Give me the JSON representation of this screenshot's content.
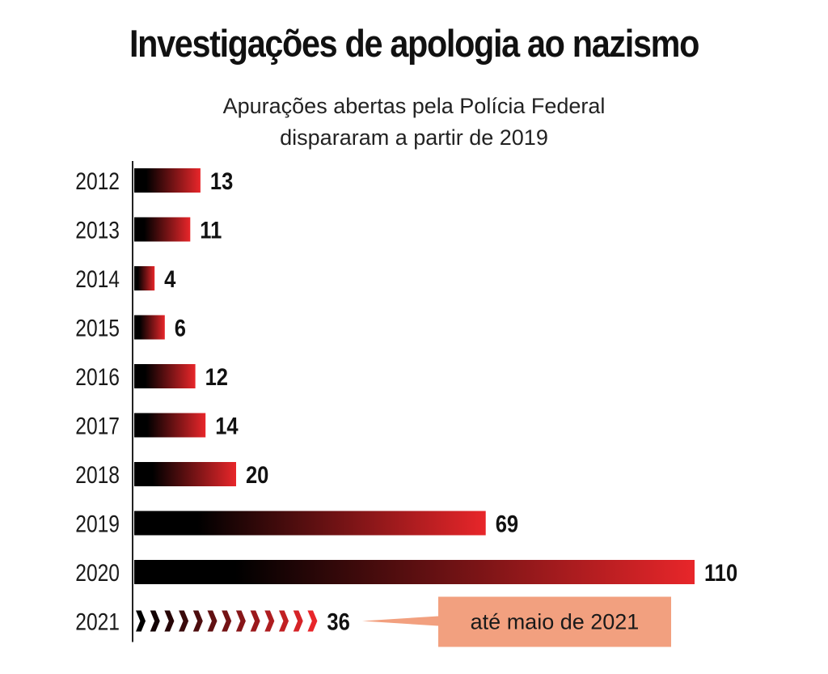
{
  "chart_data": {
    "type": "bar",
    "orientation": "horizontal",
    "title": "Investigações de apologia ao nazismo",
    "subtitle_line1": "Apurações abertas pela Polícia Federal",
    "subtitle_line2": "dispararam a partir de 2019",
    "categories": [
      "2012",
      "2013",
      "2014",
      "2015",
      "2016",
      "2017",
      "2018",
      "2019",
      "2020",
      "2021"
    ],
    "values": [
      13,
      11,
      4,
      6,
      12,
      14,
      20,
      69,
      110,
      36
    ],
    "annotation": {
      "category": "2021",
      "text": "até maio de 2021"
    },
    "xlim": [
      0,
      110
    ],
    "grid": false,
    "legend": "none"
  },
  "colors": {
    "bar_start": "#000000",
    "bar_end": "#e8262a",
    "callout_fill": "#f2a07f",
    "axis": "#222222"
  }
}
